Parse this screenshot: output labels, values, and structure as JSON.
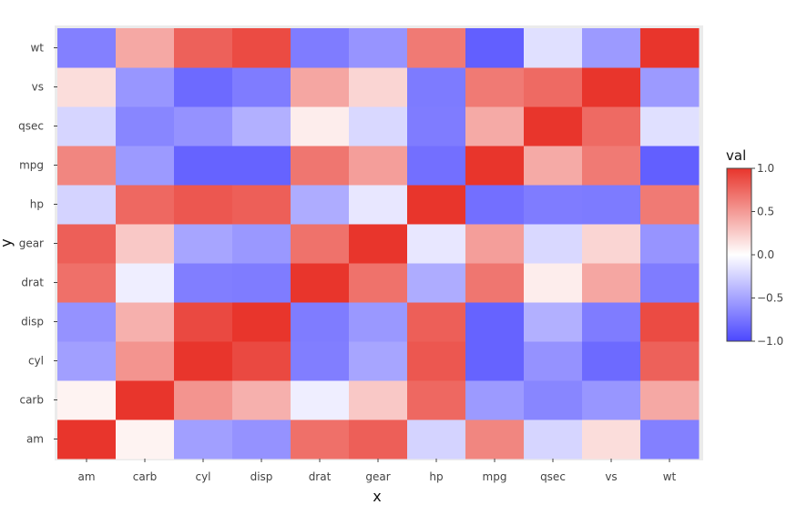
{
  "chart_data": {
    "type": "heatmap",
    "title": "",
    "xlabel": "x",
    "ylabel": "y",
    "x_categories": [
      "am",
      "carb",
      "cyl",
      "disp",
      "drat",
      "gear",
      "hp",
      "mpg",
      "qsec",
      "vs",
      "wt"
    ],
    "y_categories": [
      "am",
      "carb",
      "cyl",
      "disp",
      "drat",
      "gear",
      "hp",
      "mpg",
      "qsec",
      "vs",
      "wt"
    ],
    "values": [
      [
        1.0,
        0.06,
        -0.52,
        -0.59,
        0.71,
        0.79,
        -0.24,
        0.6,
        -0.23,
        0.17,
        -0.69
      ],
      [
        0.06,
        1.0,
        0.53,
        0.39,
        -0.09,
        0.27,
        0.75,
        -0.55,
        -0.66,
        -0.57,
        0.43
      ],
      [
        -0.52,
        0.53,
        1.0,
        0.9,
        -0.7,
        -0.49,
        0.83,
        -0.85,
        -0.59,
        -0.81,
        0.78
      ],
      [
        -0.59,
        0.39,
        0.9,
        1.0,
        -0.71,
        -0.56,
        0.79,
        -0.85,
        -0.43,
        -0.71,
        0.89
      ],
      [
        0.71,
        -0.09,
        -0.7,
        -0.71,
        1.0,
        0.7,
        -0.45,
        0.68,
        0.09,
        0.44,
        -0.71
      ],
      [
        0.79,
        0.27,
        -0.49,
        -0.56,
        0.7,
        1.0,
        -0.13,
        0.48,
        -0.21,
        0.21,
        -0.58
      ],
      [
        -0.24,
        0.75,
        0.83,
        0.79,
        -0.45,
        -0.13,
        1.0,
        -0.78,
        -0.71,
        -0.72,
        0.66
      ],
      [
        0.6,
        -0.55,
        -0.85,
        -0.85,
        0.68,
        0.48,
        -0.78,
        1.0,
        0.42,
        0.66,
        -0.87
      ],
      [
        -0.23,
        -0.66,
        -0.59,
        -0.43,
        0.09,
        -0.21,
        -0.71,
        0.42,
        1.0,
        0.74,
        -0.17
      ],
      [
        0.17,
        -0.57,
        -0.81,
        -0.71,
        0.44,
        0.21,
        -0.72,
        0.66,
        0.74,
        1.0,
        -0.55
      ],
      [
        -0.69,
        0.43,
        0.78,
        0.89,
        -0.71,
        -0.58,
        0.66,
        -0.87,
        -0.17,
        -0.55,
        1.0
      ]
    ],
    "colorscale": {
      "low": "#4b47ff",
      "mid": "#ffffff",
      "high": "#e8352c"
    },
    "zlim": [
      -1,
      1
    ],
    "legend": {
      "title": "val",
      "ticks": [
        1,
        0.5,
        0,
        -0.5,
        -1
      ],
      "tick_labels": [
        "1.0",
        "0.5",
        "0.0",
        "−0.5",
        "−1.0"
      ],
      "placement": "right"
    }
  }
}
